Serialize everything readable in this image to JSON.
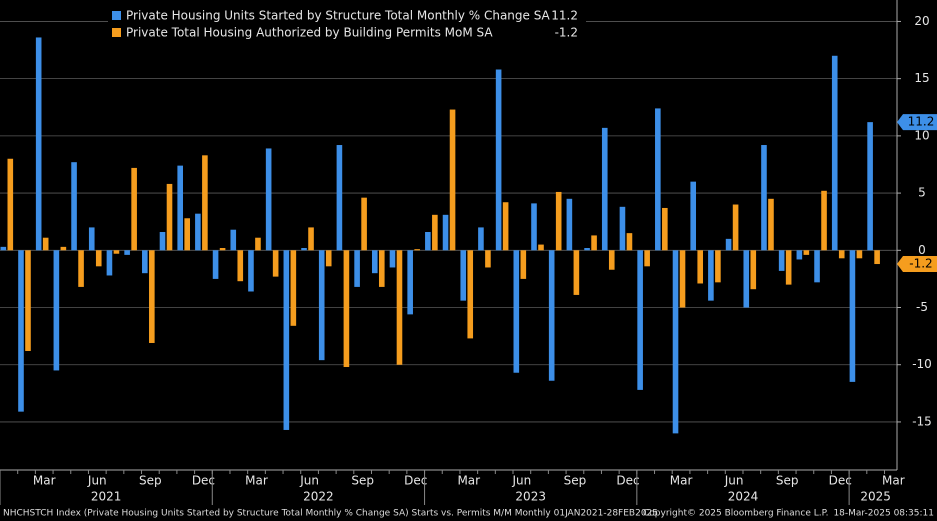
{
  "chart_data": {
    "type": "bar",
    "categories": [
      null,
      null,
      "Mar",
      null,
      null,
      "Jun",
      null,
      null,
      "Sep",
      null,
      null,
      "Dec",
      null,
      null,
      "Mar",
      null,
      null,
      "Jun",
      null,
      null,
      "Sep",
      null,
      null,
      "Dec",
      null,
      null,
      "Mar",
      null,
      null,
      "Jun",
      null,
      null,
      "Sep",
      null,
      null,
      "Dec",
      null,
      null,
      "Mar",
      null,
      null,
      "Jun",
      null,
      null,
      "Sep",
      null,
      null,
      "Dec",
      null,
      null,
      "Mar"
    ],
    "year_labels": [
      "2021",
      "2022",
      "2023",
      "2024",
      "2025"
    ],
    "series": [
      {
        "name": "Private Housing Units Started by Structure Total Monthly % Change SA",
        "color": "#3d8fe8",
        "values": [
          0.3,
          -14.1,
          18.6,
          -10.5,
          7.7,
          2.0,
          -2.2,
          -0.4,
          -2.0,
          1.6,
          7.4,
          3.2,
          -2.5,
          1.8,
          -3.6,
          8.9,
          -15.7,
          0.2,
          -9.6,
          9.2,
          -3.2,
          -2.0,
          -1.5,
          -5.6,
          1.6,
          3.1,
          -4.4,
          2.0,
          15.8,
          -10.7,
          4.1,
          -11.4,
          4.5,
          0.2,
          10.7,
          3.8,
          -12.2,
          12.4,
          -16.0,
          6.0,
          -4.4,
          1.0,
          -5.0,
          9.2,
          -1.8,
          -0.8,
          -2.8,
          17.0,
          -11.5,
          11.2,
          null
        ]
      },
      {
        "name": "Private Total Housing Authorized by Building Permits MoM SA",
        "color": "#f59d1e",
        "values": [
          8.0,
          -8.8,
          1.1,
          0.3,
          -3.2,
          -1.4,
          -0.3,
          7.2,
          -8.1,
          5.8,
          2.8,
          8.3,
          0.2,
          -2.7,
          1.1,
          -2.3,
          -6.6,
          2.0,
          -1.4,
          -10.2,
          4.6,
          -3.2,
          -10.0,
          0.1,
          3.1,
          12.3,
          -7.7,
          -1.5,
          4.2,
          -2.5,
          0.5,
          5.1,
          -3.9,
          1.3,
          -1.7,
          1.5,
          -1.4,
          3.7,
          -5.0,
          -2.9,
          -2.8,
          4.0,
          -3.4,
          4.5,
          -3.0,
          -0.4,
          5.2,
          -0.7,
          -0.7,
          -1.2,
          null
        ]
      }
    ],
    "ylim": [
      -19.2,
      21
    ],
    "yticks": [
      -15,
      -10,
      -5,
      0,
      5,
      10,
      15,
      20
    ],
    "grid": true
  },
  "footer": {
    "left": "NHCHSTCH Index (Private Housing Units Started by Structure Total Monthly % Change SA) Starts vs. Permits M/M  Monthly 01JAN2021-28FEB2025",
    "center": "Copyright© 2025 Bloomberg Finance L.P.",
    "right": "18-Mar-2025 08:35:11"
  }
}
